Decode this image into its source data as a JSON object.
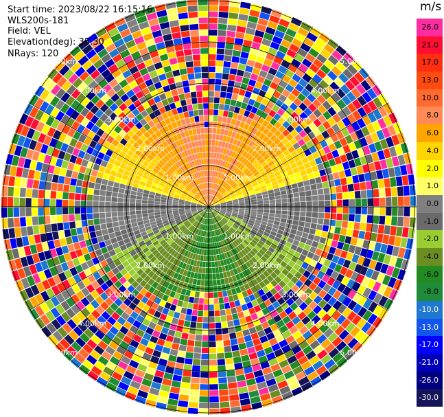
{
  "header": {
    "start_time": "Start time: 2023/08/22 16:15:16",
    "instrument": "WLS200s-181",
    "field": "Field: VEL",
    "elevation": "Elevation(deg): 35.30",
    "nrays": "NRays: 120"
  },
  "colorbar": {
    "unit": "m/s",
    "bins": [
      {
        "label": "26.0",
        "color": "#ff2ea0",
        "text": "#000000"
      },
      {
        "label": "21.0",
        "color": "#ff0d32",
        "text": "#000000"
      },
      {
        "label": "17.0",
        "color": "#ff2e10",
        "text": "#000000"
      },
      {
        "label": "13.0",
        "color": "#ff4a10",
        "text": "#000000"
      },
      {
        "label": "10.0",
        "color": "#ff6a30",
        "text": "#000000"
      },
      {
        "label": "8.0",
        "color": "#ff8a55",
        "text": "#000000"
      },
      {
        "label": "6.0",
        "color": "#ffa500",
        "text": "#000000"
      },
      {
        "label": "4.0",
        "color": "#ffd400",
        "text": "#000000"
      },
      {
        "label": "2.0",
        "color": "#ffff00",
        "text": "#000000"
      },
      {
        "label": "1.0",
        "color": "#ffff66",
        "text": "#000000"
      },
      {
        "label": "0.0",
        "color": "#808080",
        "text": "#000000"
      },
      {
        "label": "-1.0",
        "color": "#6b6b6b",
        "text": "#000000"
      },
      {
        "label": "-2.0",
        "color": "#9acd32",
        "text": "#000000"
      },
      {
        "label": "-4.0",
        "color": "#6b8e23",
        "text": "#000000"
      },
      {
        "label": "-6.0",
        "color": "#228b22",
        "text": "#000000"
      },
      {
        "label": "-8.0",
        "color": "#1e8c3a",
        "text": "#000000"
      },
      {
        "label": "-10.0",
        "color": "#1f78d0",
        "text": "#ffffff"
      },
      {
        "label": "-13.0",
        "color": "#1155ee",
        "text": "#ffffff"
      },
      {
        "label": "-17.0",
        "color": "#0000ff",
        "text": "#ffffff"
      },
      {
        "label": "-21.0",
        "color": "#0000b8",
        "text": "#ffffff"
      },
      {
        "label": "-26.0",
        "color": "#000080",
        "text": "#ffffff"
      },
      {
        "label": "-30.0",
        "color": "#14145a",
        "text": "#ffffff"
      }
    ]
  },
  "range_ring_labels": [
    "1.00km",
    "2.00km",
    "3.00km",
    "4.00km",
    "5.00km"
  ],
  "colors": {
    "background": "#ffffff",
    "ring_line": "#000000",
    "axis_line": "#000000"
  }
}
